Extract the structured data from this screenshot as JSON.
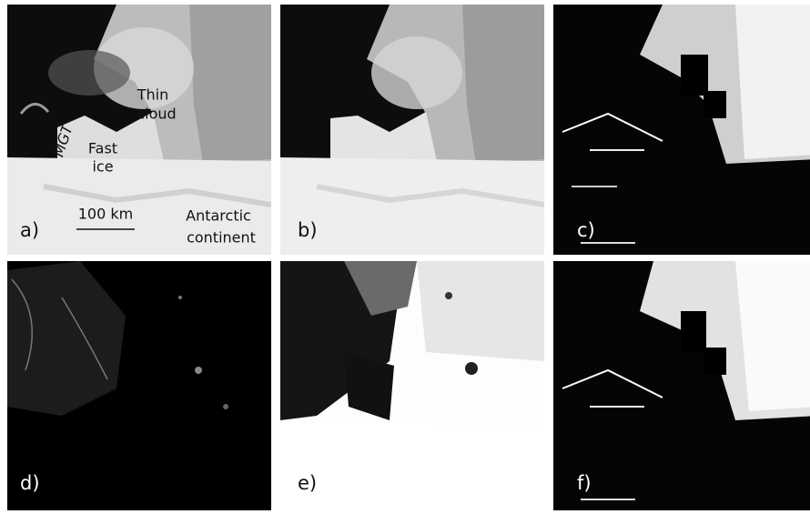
{
  "panels": [
    {
      "label": "a)"
    },
    {
      "label": "b)"
    },
    {
      "label": "c)"
    },
    {
      "label": "d)"
    },
    {
      "label": "e)"
    },
    {
      "label": "f)"
    }
  ],
  "annotations": {
    "thin_cloud": [
      "Thin",
      "cloud"
    ],
    "mgt": "MGT",
    "fast_ice": [
      "Fast",
      "ice"
    ],
    "scale_bar": "100 km",
    "antarctic_continent": [
      "Antarctic",
      "continent"
    ]
  }
}
